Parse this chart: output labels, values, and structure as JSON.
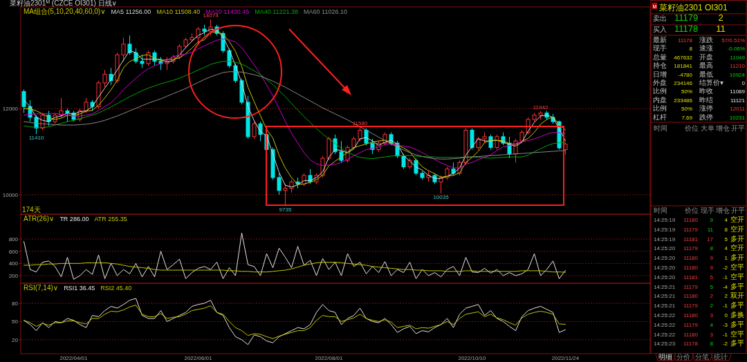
{
  "chart_data": [
    {
      "type": "candlestick",
      "title": "菜籽油2301$^{M}$ (CZCE OI301) 日线∨",
      "legend_title": "MA组合(5,10,20,40,60,0)∨",
      "legend": "top left",
      "tick_labels": "y",
      "grid": "y",
      "ylim": [
        9550,
        14365
      ],
      "yticks": [
        10000,
        12000
      ],
      "categories": [
        null,
        null,
        null,
        null,
        null,
        null,
        null,
        null,
        "2022/04/01",
        null,
        null,
        null,
        null,
        null,
        null,
        null,
        null,
        null,
        null,
        null,
        null,
        null,
        null,
        null,
        null,
        null,
        null,
        null,
        "2022/06/01",
        null,
        null,
        null,
        null,
        null,
        null,
        null,
        null,
        null,
        null,
        null,
        null,
        null,
        null,
        null,
        null,
        null,
        null,
        null,
        null,
        "2022/08/01",
        null,
        null,
        null,
        null,
        null,
        null,
        null,
        null,
        null,
        null,
        null,
        null,
        null,
        null,
        null,
        null,
        null,
        null,
        null,
        null,
        null,
        null,
        "2022/10/10",
        null,
        null,
        null,
        null,
        null,
        null,
        null,
        null,
        null,
        null,
        null,
        null,
        null,
        null,
        "2022/11/24"
      ],
      "ohlc": [
        [
          12400,
          12450,
          11900,
          12050
        ],
        [
          12050,
          12200,
          11700,
          11800
        ],
        [
          11800,
          11850,
          11410,
          11550
        ],
        [
          11550,
          11900,
          11500,
          11850
        ],
        [
          11850,
          11950,
          11600,
          11700
        ],
        [
          11700,
          11900,
          11650,
          11850
        ],
        [
          11850,
          12250,
          11800,
          11950
        ],
        [
          11950,
          12000,
          11700,
          11900
        ],
        [
          11900,
          11950,
          11700,
          11750
        ],
        [
          11750,
          12000,
          11700,
          11950
        ],
        [
          11950,
          12250,
          11900,
          12150
        ],
        [
          12150,
          12200,
          11950,
          12050
        ],
        [
          12050,
          12650,
          12000,
          12600
        ],
        [
          12600,
          12900,
          12500,
          12800
        ],
        [
          12800,
          12950,
          12550,
          12650
        ],
        [
          12650,
          13300,
          12600,
          13250
        ],
        [
          13250,
          13650,
          13100,
          13500
        ],
        [
          13500,
          13700,
          13250,
          13300
        ],
        [
          13300,
          13400,
          13050,
          13100
        ],
        [
          13100,
          13250,
          12950,
          13050
        ],
        [
          13050,
          13350,
          13000,
          13300
        ],
        [
          13300,
          13350,
          13000,
          13100
        ],
        [
          13100,
          13200,
          12900,
          13050
        ],
        [
          13050,
          13200,
          12900,
          13100
        ],
        [
          13100,
          13250,
          13050,
          13200
        ],
        [
          13200,
          13500,
          13150,
          13450
        ],
        [
          13450,
          13650,
          13400,
          13600
        ],
        [
          13600,
          13750,
          13550,
          13650
        ],
        [
          13650,
          13900,
          13500,
          13850
        ],
        [
          13850,
          13950,
          13700,
          13800
        ],
        [
          13800,
          14074,
          13700,
          13900
        ],
        [
          13900,
          13950,
          13700,
          13750
        ],
        [
          13750,
          13800,
          13300,
          13350
        ],
        [
          13350,
          13400,
          12950,
          13000
        ],
        [
          13000,
          13050,
          12600,
          12650
        ],
        [
          12650,
          12700,
          12100,
          12150
        ],
        [
          12150,
          12300,
          11300,
          11350
        ],
        [
          11350,
          11700,
          11300,
          11650
        ],
        [
          11650,
          11700,
          11250,
          11400
        ],
        [
          11400,
          11450,
          11000,
          11050
        ],
        [
          11050,
          11100,
          10350,
          10400
        ],
        [
          10400,
          10500,
          10000,
          10100
        ],
        [
          10100,
          10250,
          9735,
          10150
        ],
        [
          10150,
          10350,
          10050,
          10300
        ],
        [
          10300,
          10400,
          10150,
          10250
        ],
        [
          10250,
          10500,
          10200,
          10450
        ],
        [
          10450,
          10600,
          10250,
          10300
        ],
        [
          10300,
          10500,
          10250,
          10450
        ],
        [
          10450,
          10900,
          10400,
          10850
        ],
        [
          10850,
          11350,
          10800,
          11300
        ],
        [
          11300,
          11400,
          10950,
          11000
        ],
        [
          11000,
          11250,
          10750,
          10800
        ],
        [
          10800,
          11150,
          10750,
          11100
        ],
        [
          11100,
          11350,
          11050,
          11300
        ],
        [
          11300,
          11580,
          11250,
          11500
        ],
        [
          11500,
          11550,
          11150,
          11200
        ],
        [
          11200,
          11300,
          10950,
          11050
        ],
        [
          11050,
          11250,
          11000,
          11200
        ],
        [
          11200,
          11450,
          11150,
          11400
        ],
        [
          11400,
          11450,
          11150,
          11200
        ],
        [
          11200,
          11250,
          10850,
          10900
        ],
        [
          10900,
          10950,
          10600,
          10650
        ],
        [
          10650,
          10850,
          10600,
          10800
        ],
        [
          10800,
          10850,
          10450,
          10500
        ],
        [
          10500,
          10550,
          10350,
          10400
        ],
        [
          10400,
          10550,
          10300,
          10450
        ],
        [
          10450,
          10500,
          10250,
          10300
        ],
        [
          10300,
          10450,
          10035,
          10400
        ],
        [
          10400,
          10650,
          10350,
          10600
        ],
        [
          10600,
          10750,
          10450,
          10500
        ],
        [
          10500,
          10800,
          10450,
          10750
        ],
        [
          10750,
          11550,
          10700,
          11500
        ],
        [
          11500,
          11550,
          11050,
          11100
        ],
        [
          11100,
          11350,
          11050,
          11300
        ],
        [
          11300,
          11450,
          11200,
          11350
        ],
        [
          11350,
          11400,
          11050,
          11100
        ],
        [
          11100,
          11400,
          11050,
          11350
        ],
        [
          11350,
          11450,
          11150,
          11200
        ],
        [
          11200,
          11350,
          10850,
          10950
        ],
        [
          10950,
          11300,
          10750,
          11250
        ],
        [
          11250,
          11500,
          11200,
          11450
        ],
        [
          11450,
          11800,
          11400,
          11750
        ],
        [
          11750,
          11900,
          11700,
          11850
        ],
        [
          11850,
          11942,
          11750,
          11900
        ],
        [
          11900,
          11950,
          11750,
          11800
        ],
        [
          11800,
          11880,
          11650,
          11700
        ],
        [
          11700,
          11720,
          11050,
          11089
        ],
        [
          11049,
          11210,
          10924,
          11178
        ]
      ],
      "colors": [
        "#00e5e5",
        "#00e5e5",
        "#00e5e5",
        "#ff3232",
        "#00e5e5",
        "#ff3232",
        "#ff3232",
        "#00e5e5",
        "#00e5e5",
        "#ff3232",
        "#ff3232",
        "#00e5e5",
        "#ff3232",
        "#ff3232",
        "#00e5e5",
        "#ff3232",
        "#ff3232",
        "#00e5e5",
        "#00e5e5",
        "#00e5e5",
        "#ff3232",
        "#00e5e5",
        "#00e5e5",
        "#ff3232",
        "#ff3232",
        "#ff3232",
        "#ff3232",
        "#ff3232",
        "#ff3232",
        "#00e5e5",
        "#ff3232",
        "#00e5e5",
        "#00e5e5",
        "#00e5e5",
        "#00e5e5",
        "#00e5e5",
        "#00e5e5",
        "#ff3232",
        "#00e5e5",
        "#00e5e5",
        "#00e5e5",
        "#00e5e5",
        "#ff3232",
        "#ff3232",
        "#00e5e5",
        "#ff3232",
        "#00e5e5",
        "#ff3232",
        "#ff3232",
        "#ff3232",
        "#00e5e5",
        "#00e5e5",
        "#ff3232",
        "#ff3232",
        "#ff3232",
        "#00e5e5",
        "#00e5e5",
        "#ff3232",
        "#ff3232",
        "#00e5e5",
        "#00e5e5",
        "#00e5e5",
        "#ff3232",
        "#00e5e5",
        "#00e5e5",
        "#ff3232",
        "#00e5e5",
        "#ff3232",
        "#ff3232",
        "#00e5e5",
        "#ff3232",
        "#ff3232",
        "#00e5e5",
        "#ff3232",
        "#ff3232",
        "#00e5e5",
        "#ff3232",
        "#00e5e5",
        "#00e5e5",
        "#ff3232",
        "#ff3232",
        "#ff3232",
        "#ff3232",
        "#ff3232",
        "#00e5e5",
        "#00e5e5",
        "#00e5e5",
        "#ff3232"
      ],
      "series": [
        {
          "name": "MA5 11256.00",
          "type": "line",
          "color": "#d8d8d8",
          "values": [
            12200,
            12050,
            11800,
            11730,
            11700,
            11800,
            11830,
            11900,
            11870,
            11930,
            11950,
            12050,
            12270,
            12480,
            12680,
            12900,
            13130,
            13350,
            13300,
            13150,
            13150,
            13150,
            13150,
            13080,
            13120,
            13250,
            13420,
            13570,
            13700,
            13770,
            13850,
            13820,
            13670,
            13370,
            13000,
            12600,
            12050,
            11720,
            11470,
            11370,
            10950,
            10520,
            10220,
            10180,
            10230,
            10330,
            10330,
            10400,
            10530,
            10870,
            11050,
            11030,
            10970,
            11070,
            11300,
            11330,
            11250,
            11150,
            11220,
            11270,
            11170,
            10920,
            10780,
            10650,
            10570,
            10450,
            10380,
            10380,
            10430,
            10500,
            10620,
            10920,
            11120,
            11300,
            11250,
            11250,
            11270,
            11220,
            11170,
            11130,
            11220,
            11480,
            11680,
            11830,
            11850,
            11800,
            11530,
            11256
          ]
        },
        {
          "name": "MA10 11508.40",
          "type": "line",
          "color": "#c8c800",
          "values": [
            12000,
            12000,
            11950,
            11880,
            11800,
            11750,
            11780,
            11850,
            11840,
            11880,
            11940,
            11960,
            12080,
            12250,
            12440,
            12660,
            12950,
            13100,
            13160,
            13240,
            13250,
            13170,
            13120,
            13140,
            13150,
            13180,
            13280,
            13410,
            13550,
            13600,
            13770,
            13790,
            13730,
            13560,
            13330,
            12980,
            12500,
            12160,
            11840,
            11520,
            11320,
            10920,
            10620,
            10400,
            10240,
            10250,
            10290,
            10350,
            10460,
            10670,
            10780,
            10880,
            10990,
            11100,
            11140,
            11180,
            11230,
            11250,
            11270,
            11210,
            11150,
            11090,
            11000,
            10810,
            10650,
            10560,
            10490,
            10410,
            10430,
            10450,
            10510,
            10750,
            10870,
            11010,
            11210,
            11270,
            11260,
            11260,
            11190,
            11170,
            11240,
            11310,
            11450,
            11640,
            11750,
            11810,
            11630,
            11508
          ]
        },
        {
          "name": "MA20 11430.45",
          "type": "line",
          "color": "#d000d0",
          "values": [
            11850,
            11870,
            11880,
            11880,
            11890,
            11890,
            11870,
            11850,
            11830,
            11830,
            11850,
            11880,
            11960,
            12050,
            12140,
            12280,
            12440,
            12580,
            12710,
            12830,
            12930,
            13000,
            13050,
            13130,
            13210,
            13250,
            13270,
            13310,
            13390,
            13460,
            13530,
            13590,
            13620,
            13600,
            13550,
            13420,
            13220,
            13020,
            12800,
            12550,
            12300,
            12000,
            11700,
            11430,
            11200,
            10980,
            10810,
            10720,
            10680,
            10690,
            10710,
            10750,
            10820,
            10910,
            10980,
            11050,
            11080,
            11110,
            11170,
            11180,
            11160,
            11130,
            11110,
            11050,
            10980,
            10900,
            10820,
            10740,
            10680,
            10630,
            10620,
            10710,
            10750,
            10820,
            10870,
            10930,
            11030,
            11110,
            11150,
            11190,
            11230,
            11260,
            11300,
            11350,
            11410,
            11450,
            11440,
            11430
          ]
        },
        {
          "name": "MA40 11221.38",
          "type": "line",
          "color": "#00a800",
          "values": [
            11600,
            11580,
            11560,
            11560,
            11580,
            11620,
            11660,
            11700,
            11730,
            11770,
            11810,
            11850,
            11900,
            11970,
            12040,
            12120,
            12200,
            12280,
            12350,
            12420,
            12480,
            12530,
            12580,
            12620,
            12660,
            12710,
            12770,
            12830,
            12900,
            12960,
            13030,
            13070,
            13100,
            13100,
            13080,
            13040,
            12960,
            12880,
            12790,
            12680,
            12560,
            12420,
            12280,
            12120,
            11970,
            11820,
            11680,
            11540,
            11410,
            11300,
            11190,
            11080,
            10990,
            10920,
            10870,
            10850,
            10840,
            10860,
            10880,
            10900,
            10910,
            10910,
            10910,
            10900,
            10890,
            10880,
            10880,
            10870,
            10870,
            10870,
            10870,
            10880,
            10880,
            10870,
            10860,
            10850,
            10860,
            10870,
            10880,
            10880,
            10880,
            10920,
            11000,
            11070,
            11140,
            11190,
            11210,
            11221
          ]
        },
        {
          "name": "MA60 11026.10",
          "type": "line",
          "color": "#8c8c8c",
          "values": [
            11700,
            11680,
            11660,
            11650,
            11640,
            11630,
            11620,
            11620,
            11620,
            11630,
            11640,
            11660,
            11690,
            11730,
            11780,
            11830,
            11890,
            11950,
            12010,
            12070,
            12130,
            12180,
            12230,
            12290,
            12350,
            12410,
            12470,
            12540,
            12610,
            12680,
            12740,
            12790,
            12840,
            12860,
            12860,
            12850,
            12820,
            12790,
            12750,
            12700,
            12640,
            12570,
            12500,
            12420,
            12340,
            12260,
            12180,
            12100,
            12020,
            11950,
            11880,
            11810,
            11740,
            11660,
            11580,
            11500,
            11420,
            11340,
            11260,
            11180,
            11110,
            11040,
            10980,
            10930,
            10890,
            10860,
            10840,
            10830,
            10830,
            10840,
            10850,
            10870,
            10880,
            10890,
            10900,
            10910,
            10920,
            10930,
            10940,
            10950,
            10960,
            10970,
            10980,
            10990,
            11000,
            11010,
            11020,
            11026
          ]
        }
      ],
      "annotations": [
        {
          "text": "14074",
          "y": 14074
        },
        {
          "text": "11410",
          "y": 11410
        },
        {
          "text": "9735",
          "y": 9735
        },
        {
          "text": "11580",
          "y": 11580
        },
        {
          "text": "10035",
          "y": 10035
        },
        {
          "text": "11942",
          "y": 11942
        },
        "174天"
      ]
    },
    {
      "type": "line",
      "legend_title": "ATR(26)∨",
      "legend": "top left",
      "tick_labels": "y",
      "grid": "y",
      "ylim": [
        75,
        1208
      ],
      "yticks": [
        200,
        400,
        600,
        800
      ],
      "categories": [
        null,
        null,
        null,
        null,
        null,
        null,
        null,
        null,
        "2022/04/01",
        null,
        null,
        null,
        null,
        null,
        null,
        null,
        null,
        null,
        null,
        null,
        null,
        null,
        null,
        null,
        null,
        null,
        null,
        null,
        "2022/06/01",
        null,
        null,
        null,
        null,
        null,
        null,
        null,
        null,
        null,
        null,
        null,
        null,
        null,
        null,
        null,
        null,
        null,
        null,
        null,
        null,
        "2022/08/01",
        null,
        null,
        null,
        null,
        null,
        null,
        null,
        null,
        null,
        null,
        null,
        null,
        null,
        null,
        null,
        null,
        null,
        null,
        null,
        null,
        null,
        null,
        "2022/10/10",
        null,
        null,
        null,
        null,
        null,
        null,
        null,
        null,
        null,
        null,
        null,
        null,
        null,
        null,
        "2022/11/24"
      ],
      "series": [
        {
          "name": "TR 286.00",
          "color": "#e8e8e8",
          "values": [
            760,
            300,
            260,
            420,
            440,
            350,
            180,
            500,
            140,
            200,
            300,
            220,
            540,
            150,
            400,
            200,
            300,
            230,
            400,
            180,
            350,
            180,
            600,
            300,
            380,
            470,
            150,
            250,
            320,
            350,
            300,
            420,
            150,
            330,
            200,
            900,
            380,
            350,
            200,
            560,
            330,
            650,
            500,
            330,
            680,
            370,
            450,
            200,
            480,
            300,
            420,
            200,
            560,
            350,
            420,
            230,
            350,
            250,
            430,
            200,
            300,
            250,
            420,
            150,
            300,
            200,
            250,
            180,
            300,
            350,
            200,
            500,
            260,
            250,
            320,
            240,
            300,
            200,
            250,
            200,
            230,
            300,
            560,
            200,
            300,
            440,
            150,
            286
          ]
        },
        {
          "name": "ATR 255.35",
          "color": "#c8c800",
          "values": [
            370,
            370,
            380,
            380,
            390,
            390,
            400,
            400,
            400,
            400,
            410,
            410,
            410,
            410,
            400,
            390,
            370,
            350,
            340,
            330,
            320,
            300,
            290,
            290,
            290,
            290,
            290,
            290,
            290,
            290,
            290,
            290,
            290,
            280,
            280,
            270,
            270,
            260,
            260,
            260,
            270,
            280,
            290,
            310,
            340,
            370,
            390,
            410,
            420,
            420,
            420,
            410,
            400,
            390,
            380,
            370,
            350,
            340,
            330,
            320,
            310,
            300,
            300,
            290,
            290,
            280,
            280,
            280,
            270,
            270,
            270,
            280,
            280,
            270,
            270,
            270,
            270,
            270,
            270,
            270,
            280,
            280,
            280,
            280,
            270,
            260,
            260,
            255.35
          ]
        }
      ]
    },
    {
      "type": "line",
      "legend_title": "RSI(7,14)∨",
      "legend": "top left",
      "grid": "y",
      "ylim": [
        -3,
        113
      ],
      "yticks": [
        20,
        50,
        80
      ],
      "categories": [
        null,
        null,
        null,
        null,
        null,
        null,
        null,
        null,
        "2022/04/01",
        null,
        null,
        null,
        null,
        null,
        null,
        null,
        null,
        null,
        null,
        null,
        null,
        null,
        null,
        null,
        null,
        null,
        null,
        null,
        "2022/06/01",
        null,
        null,
        null,
        null,
        null,
        null,
        null,
        null,
        null,
        null,
        null,
        null,
        null,
        null,
        null,
        null,
        null,
        null,
        null,
        null,
        "2022/08/01",
        null,
        null,
        null,
        null,
        null,
        null,
        null,
        null,
        null,
        null,
        null,
        null,
        null,
        null,
        null,
        null,
        null,
        null,
        null,
        null,
        null,
        null,
        "2022/10/10",
        null,
        null,
        null,
        null,
        null,
        null,
        null,
        null,
        null,
        null,
        null,
        null,
        null,
        null,
        "2022/11/24"
      ],
      "series": [
        {
          "name": "RSI1 36.45",
          "color": "#e8e8e8",
          "values": [
            52,
            45,
            35,
            48,
            40,
            50,
            48,
            55,
            52,
            45,
            40,
            60,
            58,
            68,
            75,
            72,
            78,
            85,
            88,
            60,
            55,
            55,
            68,
            50,
            55,
            60,
            65,
            75,
            78,
            80,
            85,
            65,
            60,
            40,
            25,
            20,
            12,
            28,
            25,
            18,
            15,
            25,
            30,
            35,
            40,
            38,
            45,
            65,
            78,
            68,
            65,
            45,
            55,
            60,
            72,
            55,
            50,
            48,
            55,
            45,
            32,
            38,
            42,
            30,
            35,
            33,
            40,
            45,
            55,
            40,
            62,
            72,
            75,
            78,
            60,
            68,
            55,
            50,
            42,
            35,
            58,
            68,
            72,
            75,
            70,
            65,
            32,
            36.45
          ]
        },
        {
          "name": "RSI2 45.40",
          "color": "#c8c800",
          "values": [
            52,
            48,
            42,
            47,
            44,
            48,
            48,
            51,
            51,
            48,
            46,
            55,
            55,
            62,
            67,
            66,
            69,
            74,
            77,
            62,
            58,
            58,
            63,
            55,
            57,
            58,
            62,
            68,
            70,
            72,
            76,
            65,
            62,
            50,
            40,
            35,
            27,
            30,
            29,
            25,
            22,
            26,
            29,
            32,
            35,
            35,
            40,
            52,
            60,
            58,
            58,
            50,
            53,
            56,
            62,
            55,
            52,
            50,
            53,
            49,
            40,
            42,
            44,
            38,
            40,
            39,
            42,
            45,
            50,
            45,
            55,
            62,
            64,
            66,
            58,
            62,
            56,
            53,
            48,
            44,
            56,
            62,
            65,
            67,
            65,
            62,
            46,
            45.4
          ]
        }
      ]
    },
    {
      "type": "other",
      "title": "菜籽油2301  OI301",
      "annotations": [
        "M",
        "卖出",
        "11179",
        "2",
        "买入",
        "11178",
        "11",
        "最新",
        "11178",
        "涨跌",
        "57/0.51%",
        "现手",
        "8",
        "速涨",
        "-0.06%",
        "总量",
        "467632",
        "开盘",
        "11049",
        "持仓",
        "181841",
        "最高",
        "11210",
        "日增",
        "-4780",
        "最低",
        "10924",
        "外盘",
        "234146",
        "结算价▾",
        "0",
        "比例",
        "50%",
        "昨收",
        "11089",
        "内盘",
        "233486",
        "昨结",
        "11121",
        "比例",
        "50%",
        "涨停",
        "12011",
        "杠杆",
        "7.69",
        "跌停",
        "10231",
        "时间",
        "价位",
        "大单",
        "增仓",
        "开平",
        "时间",
        "价位",
        "现手",
        "增仓",
        "开平",
        "14:25:19",
        "11180",
        "9",
        "4",
        "空开",
        "14:25:19",
        "11179",
        "11",
        "8",
        "空开",
        "14:25:19",
        "11181",
        "17",
        "5",
        "多开",
        "14:25:20",
        "11179",
        "8",
        "4",
        "空开",
        "14:25:20",
        "11180",
        "9",
        "1",
        "多开",
        "14:25:20",
        "11180",
        "9",
        "-2",
        "空平",
        "14:25:20",
        "11181",
        "5",
        "-1",
        "空平",
        "14:25:21",
        "11179",
        "5",
        "-4",
        "多平",
        "14:25:21",
        "11180",
        "2",
        "2",
        "双开",
        "14:25:21",
        "11179",
        "2",
        "-1",
        "多平",
        "14:25:22",
        "11180",
        "3",
        "0",
        "多换",
        "14:25:22",
        "11179",
        "4",
        "-3",
        "多平",
        "14:25:22",
        "11180",
        "3",
        "-1",
        "空平",
        "14:25:23",
        "11178",
        "8",
        "-2",
        "多平",
        "明细",
        "分价",
        "分笔",
        "统计"
      ]
    }
  ]
}
